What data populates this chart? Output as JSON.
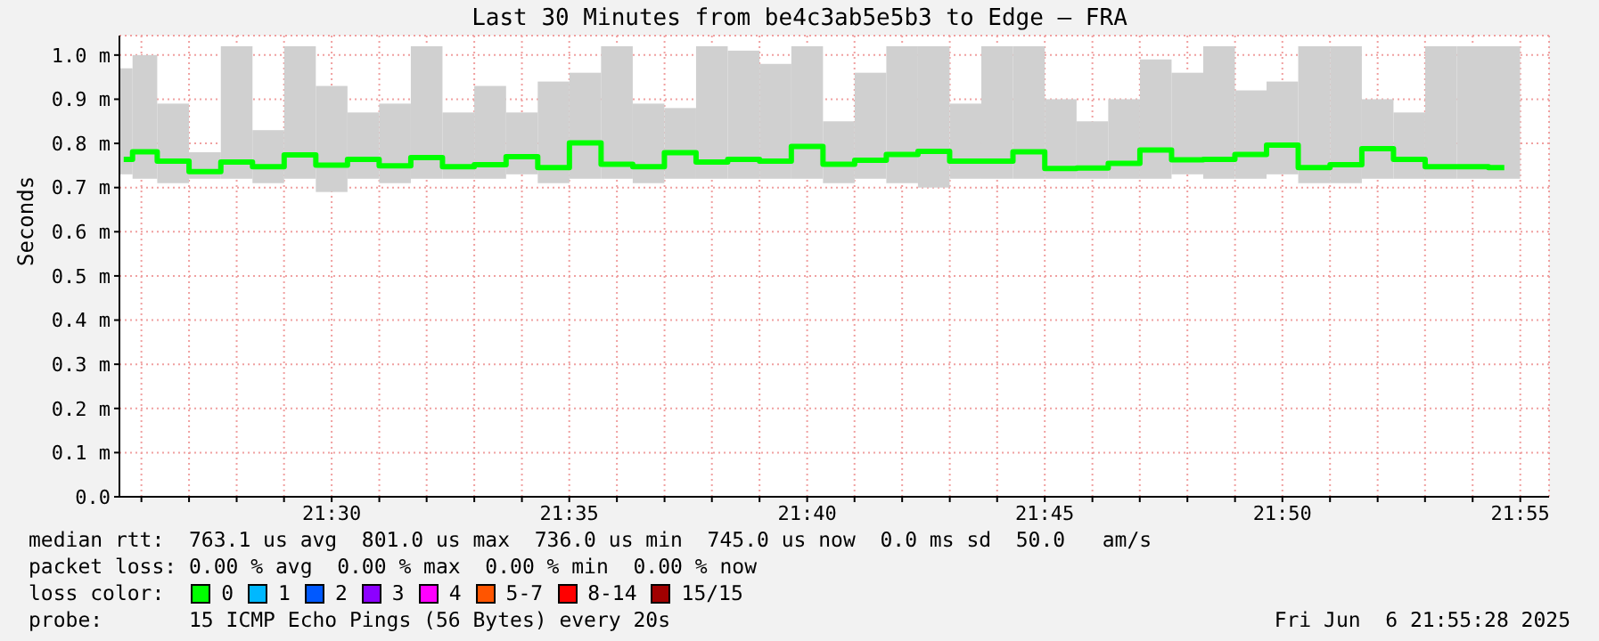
{
  "chart_data": {
    "type": "step",
    "title": "Last 30 Minutes from be4c3ab5e5b3 to Edge — FRA",
    "ylabel": "Seconds",
    "x": [
      21.4271,
      21.4333,
      21.4444,
      21.4556,
      21.4667,
      21.4778,
      21.4889,
      21.5,
      21.5111,
      21.5222,
      21.5333,
      21.5444,
      21.5556,
      21.5667,
      21.5778,
      21.5889,
      21.6,
      21.6111,
      21.6222,
      21.6333,
      21.6444,
      21.6556,
      21.6667,
      21.6778,
      21.6889,
      21.7,
      21.7111,
      21.7222,
      21.7333,
      21.7444,
      21.7556,
      21.7667,
      21.7778,
      21.7889,
      21.8,
      21.8111,
      21.8222,
      21.8333,
      21.8444,
      21.8556,
      21.8667,
      21.8778,
      21.8889,
      21.9,
      21.9111
    ],
    "series": [
      {
        "type": "bar",
        "color": "#d0d0d0",
        "base": [
          0.73,
          0.72,
          0.71,
          0.72,
          0.72,
          0.71,
          0.72,
          0.69,
          0.72,
          0.71,
          0.72,
          0.72,
          0.72,
          0.73,
          0.71,
          0.72,
          0.72,
          0.71,
          0.72,
          0.72,
          0.72,
          0.72,
          0.72,
          0.71,
          0.72,
          0.71,
          0.7,
          0.72,
          0.72,
          0.72,
          0.72,
          0.72,
          0.72,
          0.72,
          0.73,
          0.72,
          0.72,
          0.73,
          0.71,
          0.71,
          0.72,
          0.72,
          0.72,
          0.72,
          0.72
        ],
        "values": [
          0.24,
          0.28,
          0.18,
          0.06,
          0.3,
          0.12,
          0.3,
          0.24,
          0.15,
          0.18,
          0.3,
          0.15,
          0.21,
          0.14,
          0.23,
          0.24,
          0.3,
          0.18,
          0.16,
          0.3,
          0.29,
          0.26,
          0.3,
          0.14,
          0.24,
          0.31,
          0.32,
          0.17,
          0.3,
          0.3,
          0.18,
          0.13,
          0.18,
          0.27,
          0.23,
          0.3,
          0.2,
          0.21,
          0.31,
          0.31,
          0.18,
          0.15,
          0.3,
          0.3,
          0.3
        ]
      },
      {
        "color": "#00ff00",
        "values": [
          0.764,
          0.781,
          0.76,
          0.736,
          0.758,
          0.747,
          0.774,
          0.751,
          0.764,
          0.749,
          0.768,
          0.747,
          0.752,
          0.77,
          0.745,
          0.801,
          0.753,
          0.747,
          0.779,
          0.758,
          0.764,
          0.76,
          0.793,
          0.753,
          0.762,
          0.775,
          0.782,
          0.76,
          0.76,
          0.781,
          0.743,
          0.744,
          0.755,
          0.785,
          0.763,
          0.764,
          0.775,
          0.796,
          0.745,
          0.752,
          0.788,
          0.764,
          0.747,
          0.747,
          0.745
        ]
      }
    ],
    "xlim": [
      21.4256,
      21.9268
    ],
    "xticks": [
      {
        "value": 21.4333,
        "label": null
      },
      {
        "value": 21.45,
        "label": null
      },
      {
        "value": 21.4667,
        "label": null
      },
      {
        "value": 21.4833,
        "label": null
      },
      {
        "value": 21.5,
        "label": "21:30"
      },
      {
        "value": 21.5167,
        "label": null
      },
      {
        "value": 21.5333,
        "label": null
      },
      {
        "value": 21.55,
        "label": null
      },
      {
        "value": 21.5667,
        "label": null
      },
      {
        "value": 21.5833,
        "label": "21:35"
      },
      {
        "value": 21.6,
        "label": null
      },
      {
        "value": 21.6167,
        "label": null
      },
      {
        "value": 21.6333,
        "label": null
      },
      {
        "value": 21.65,
        "label": null
      },
      {
        "value": 21.6667,
        "label": "21:40"
      },
      {
        "value": 21.6833,
        "label": null
      },
      {
        "value": 21.7,
        "label": null
      },
      {
        "value": 21.7167,
        "label": null
      },
      {
        "value": 21.7333,
        "label": null
      },
      {
        "value": 21.75,
        "label": "21:45"
      },
      {
        "value": 21.7667,
        "label": null
      },
      {
        "value": 21.7833,
        "label": null
      },
      {
        "value": 21.8,
        "label": null
      },
      {
        "value": 21.8167,
        "label": null
      },
      {
        "value": 21.8333,
        "label": "21:50"
      },
      {
        "value": 21.85,
        "label": null
      },
      {
        "value": 21.8667,
        "label": null
      },
      {
        "value": 21.8833,
        "label": null
      },
      {
        "value": 21.9,
        "label": null
      },
      {
        "value": 21.9167,
        "label": "21:55"
      }
    ],
    "ylim": [
      0,
      1.044
    ],
    "yticks": [
      {
        "value": 0,
        "label": "0.0"
      },
      {
        "value": 0.1,
        "label": "0.1 m"
      },
      {
        "value": 0.2,
        "label": "0.2 m"
      },
      {
        "value": 0.3,
        "label": "0.3 m"
      },
      {
        "value": 0.4,
        "label": "0.4 m"
      },
      {
        "value": 0.5,
        "label": "0.5 m"
      },
      {
        "value": 0.6,
        "label": "0.6 m"
      },
      {
        "value": 0.7,
        "label": "0.7 m"
      },
      {
        "value": 0.8,
        "label": "0.8 m"
      },
      {
        "value": 0.9,
        "label": "0.9 m"
      },
      {
        "value": 1.0,
        "label": "1.0 m"
      }
    ],
    "grid": true,
    "annotations": [
      "median rtt:  763.1 us avg  801.0 us max  736.0 us min  745.0 us now  0.0 ms sd  50.0   am/s",
      "packet loss: 0.00 % avg  0.00 % max  0.00 % min  0.00 % now",
      "loss color:",
      "0",
      "1",
      "2",
      "3",
      "4",
      "5-7",
      "8-14",
      "15/15",
      "probe:       15 ICMP Echo Pings (56 Bytes) every 20s",
      "Fri Jun  6 21:55:28 2025"
    ]
  }
}
